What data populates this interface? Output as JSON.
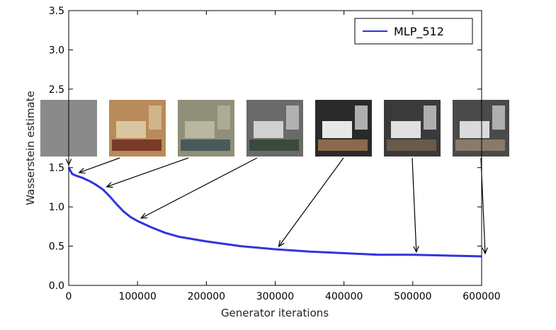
{
  "chart_data": {
    "type": "line",
    "xlabel": "Generator iterations",
    "ylabel": "Wasserstein estimate",
    "xlim": [
      0,
      600000
    ],
    "ylim": [
      0,
      3.5
    ],
    "x_ticks": [
      0,
      100000,
      200000,
      300000,
      400000,
      500000,
      600000
    ],
    "x_tick_labels": [
      "0",
      "100000",
      "200000",
      "300000",
      "400000",
      "500000",
      "600000"
    ],
    "y_ticks": [
      0,
      0.5,
      1.0,
      1.5,
      2.0,
      2.5,
      3.0,
      3.5
    ],
    "y_tick_labels": [
      "0.0",
      "0.5",
      "1.0",
      "1.5",
      "2.0",
      "2.5",
      "3.0",
      "3.5"
    ],
    "grid": false,
    "legend_position": "top-right",
    "series": [
      {
        "name": "MLP_512",
        "color": "#3333dd",
        "x": [
          0,
          5000,
          10000,
          20000,
          30000,
          40000,
          50000,
          60000,
          70000,
          80000,
          90000,
          100000,
          120000,
          140000,
          160000,
          200000,
          250000,
          300000,
          350000,
          400000,
          450000,
          500000,
          550000,
          600000
        ],
        "y": [
          1.5,
          1.42,
          1.4,
          1.37,
          1.33,
          1.28,
          1.22,
          1.13,
          1.03,
          0.94,
          0.87,
          0.82,
          0.74,
          0.67,
          0.62,
          0.56,
          0.5,
          0.46,
          0.43,
          0.41,
          0.39,
          0.39,
          0.38,
          0.37
        ]
      }
    ],
    "sample_images": [
      {
        "label": "sample at iteration 0",
        "x": 0,
        "y": 1.5,
        "palette": [
          "#8a8a8a",
          "#9a9a9a",
          "#7e7e7e"
        ]
      },
      {
        "label": "sample at iteration 10000",
        "x": 10000,
        "y": 1.4,
        "palette": [
          "#b98a5a",
          "#d8c7a0",
          "#7a3a2a"
        ]
      },
      {
        "label": "sample at iteration 50000",
        "x": 50000,
        "y": 1.22,
        "palette": [
          "#8f8f7a",
          "#b8b8a0",
          "#4a5a5a"
        ]
      },
      {
        "label": "sample at iteration 100000",
        "x": 100000,
        "y": 0.82,
        "palette": [
          "#6a6a6a",
          "#d0d0d0",
          "#3a4a3a"
        ]
      },
      {
        "label": "sample at iteration 300000",
        "x": 300000,
        "y": 0.46,
        "palette": [
          "#2a2a2a",
          "#e8e8e8",
          "#8a6a4a"
        ]
      },
      {
        "label": "sample at iteration 500000",
        "x": 500000,
        "y": 0.39,
        "palette": [
          "#3a3a3a",
          "#e0e0e0",
          "#6a5a4a"
        ]
      },
      {
        "label": "sample at iteration 600000",
        "x": 600000,
        "y": 0.37,
        "palette": [
          "#4a4a4a",
          "#dadada",
          "#8a7a6a"
        ]
      }
    ]
  }
}
